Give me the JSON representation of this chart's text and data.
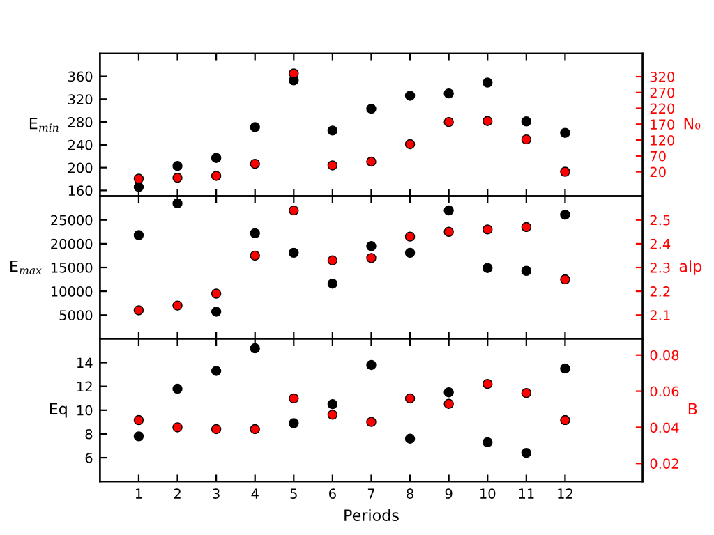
{
  "chart_data": [
    {
      "type": "scatter",
      "ylabel": "E$_{min}$",
      "y2label": "N₀",
      "x": [
        1,
        2,
        3,
        4,
        5,
        6,
        7,
        8,
        9,
        10,
        11,
        12
      ],
      "xlim": [
        0,
        14
      ],
      "xticks": [
        1,
        2,
        3,
        4,
        5,
        6,
        7,
        8,
        9,
        10,
        11,
        12
      ],
      "ylim": [
        150,
        400
      ],
      "yticks": [
        160,
        200,
        240,
        280,
        320,
        360
      ],
      "y2lim": [
        -57,
        393
      ],
      "y2ticks": [
        20,
        70,
        120,
        170,
        220,
        270,
        320
      ],
      "tick_labels": "y",
      "marker": "circle",
      "grid": false,
      "series": [
        {
          "color": "#000000",
          "values": [
            166,
            203,
            217,
            271,
            353,
            265,
            303,
            326,
            330,
            349,
            281,
            261
          ]
        },
        {
          "color": "#ff0000",
          "axis": "y2",
          "values": [
            -2,
            1,
            7,
            45,
            330,
            40,
            52,
            107,
            177,
            180,
            122,
            20
          ]
        }
      ]
    },
    {
      "type": "scatter",
      "ylabel": "E$_{max}$",
      "y2label": "alp",
      "x": [
        1,
        2,
        3,
        4,
        5,
        6,
        7,
        8,
        9,
        10,
        11,
        12
      ],
      "xlim": [
        0,
        14
      ],
      "xticks": [
        1,
        2,
        3,
        4,
        5,
        6,
        7,
        8,
        9,
        10,
        11,
        12
      ],
      "ylim": [
        0,
        30000
      ],
      "yticks": [
        5000,
        10000,
        15000,
        20000,
        25000
      ],
      "y2lim": [
        2.0,
        2.6
      ],
      "y2ticks": [
        2.1,
        2.2,
        2.3,
        2.4,
        2.5
      ],
      "tick_labels": "y",
      "marker": "circle",
      "grid": false,
      "series": [
        {
          "color": "#000000",
          "values": [
            21800,
            28500,
            5700,
            22200,
            18100,
            11600,
            19500,
            18100,
            27000,
            14900,
            14300,
            26100
          ]
        },
        {
          "color": "#ff0000",
          "axis": "y2",
          "values": [
            2.12,
            2.14,
            2.19,
            2.35,
            2.54,
            2.33,
            2.34,
            2.43,
            2.45,
            2.46,
            2.47,
            2.25
          ]
        }
      ]
    },
    {
      "type": "scatter",
      "xlabel": "Periods",
      "ylabel": "Eq",
      "y2label": "B",
      "x": [
        1,
        2,
        3,
        4,
        5,
        6,
        7,
        8,
        9,
        10,
        11,
        12
      ],
      "xlim": [
        0,
        14
      ],
      "xticks": [
        1,
        2,
        3,
        4,
        5,
        6,
        7,
        8,
        9,
        10,
        11,
        12
      ],
      "ylim": [
        4,
        16
      ],
      "yticks": [
        6,
        8,
        10,
        12,
        14
      ],
      "y2lim": [
        0.01,
        0.089
      ],
      "y2ticks": [
        0.02,
        0.04,
        0.06,
        0.08
      ],
      "marker": "circle",
      "grid": false,
      "series": [
        {
          "color": "#000000",
          "values": [
            7.8,
            11.8,
            13.3,
            15.2,
            8.9,
            10.5,
            13.8,
            7.6,
            11.5,
            7.3,
            6.4,
            13.5
          ]
        },
        {
          "color": "#ff0000",
          "axis": "y2",
          "values": [
            0.044,
            0.04,
            0.039,
            0.039,
            0.056,
            0.047,
            0.043,
            0.056,
            0.053,
            0.064,
            0.059,
            0.044
          ]
        }
      ]
    }
  ]
}
